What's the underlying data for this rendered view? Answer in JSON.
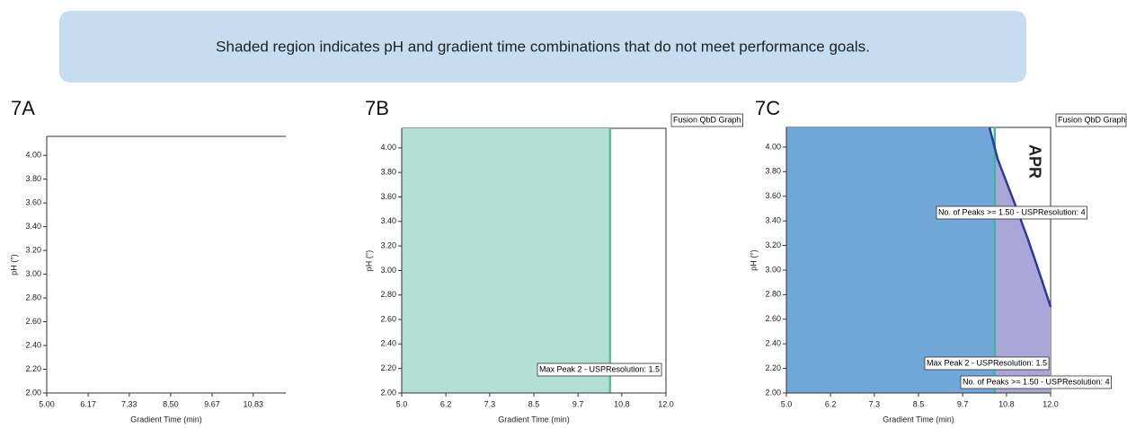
{
  "banner": "Shaded region indicates pH and gradient time combinations that do not meet performance goals.",
  "chart_data": [
    {
      "type": "area",
      "label": "7A",
      "xlabel": "Gradient Time (min)",
      "ylabel": "pH (°)",
      "xlim": [
        5,
        11.75
      ],
      "ylim": [
        2,
        4.16
      ],
      "xticks": [
        {
          "value": 5,
          "label": "5.00"
        },
        6.17,
        7.33,
        {
          "value": 8.5,
          "label": "8.50"
        },
        9.67,
        10.83
      ],
      "yticks": [
        {
          "value": 2,
          "label": "2.00"
        },
        {
          "value": 2.2,
          "label": "2.20"
        },
        {
          "value": 2.4,
          "label": "2.40"
        },
        {
          "value": 2.6,
          "label": "2.60"
        },
        {
          "value": 2.8,
          "label": "2.80"
        },
        {
          "value": 3,
          "label": "3.00"
        },
        {
          "value": 3.2,
          "label": "3.20"
        },
        {
          "value": 3.4,
          "label": "3.40"
        },
        {
          "value": 3.6,
          "label": "3.60"
        },
        {
          "value": 3.8,
          "label": "3.80"
        },
        {
          "value": 4,
          "label": "4.00"
        }
      ],
      "regions": [],
      "lines": [],
      "annotations": []
    },
    {
      "type": "area",
      "label": "7B",
      "xlabel": "Gradient Time (min)",
      "ylabel": "pH (°)",
      "graph_label": "Fusion QbD Graph",
      "xlim": [
        5,
        12
      ],
      "ylim": [
        2,
        4.16
      ],
      "xticks": [
        {
          "value": 5,
          "label": "5.0"
        },
        {
          "value": 6.17,
          "label": "6.2"
        },
        {
          "value": 7.33,
          "label": "7.3"
        },
        8.5,
        {
          "value": 9.67,
          "label": "9.7"
        },
        {
          "value": 10.83,
          "label": "10.8"
        },
        {
          "value": 12,
          "label": "12.0"
        }
      ],
      "yticks": [
        {
          "value": 2,
          "label": "2.00"
        },
        {
          "value": 2.2,
          "label": "2.20"
        },
        {
          "value": 2.4,
          "label": "2.40"
        },
        {
          "value": 2.6,
          "label": "2.60"
        },
        {
          "value": 2.8,
          "label": "2.80"
        },
        {
          "value": 3,
          "label": "3.00"
        },
        {
          "value": 3.2,
          "label": "3.20"
        },
        {
          "value": 3.4,
          "label": "3.40"
        },
        {
          "value": 3.6,
          "label": "3.60"
        },
        {
          "value": 3.8,
          "label": "3.80"
        },
        {
          "value": 4,
          "label": "4.00"
        }
      ],
      "regions": [
        {
          "color": "#b4e0d4",
          "x": [
            5,
            5,
            10.52,
            10.52
          ],
          "values": [
            2,
            4.16,
            4.16,
            2
          ]
        }
      ],
      "lines": [
        {
          "color": "#5cbf9c",
          "x": [
            10.52,
            10.52
          ],
          "values": [
            2,
            4.16
          ]
        }
      ],
      "annotations": [
        "Max Peak 2 - USPResolution: 1.5"
      ]
    },
    {
      "type": "area",
      "label": "7C",
      "xlabel": "Gradient Time (min)",
      "ylabel": "pH (°)",
      "graph_label": "Fusion QbD Graph",
      "region_label": "APR",
      "xlim": [
        5,
        12
      ],
      "ylim": [
        2,
        4.16
      ],
      "xticks": [
        {
          "value": 5,
          "label": "5.0"
        },
        {
          "value": 6.17,
          "label": "6.2"
        },
        {
          "value": 7.33,
          "label": "7.3"
        },
        8.5,
        {
          "value": 9.67,
          "label": "9.7"
        },
        {
          "value": 10.83,
          "label": "10.8"
        },
        {
          "value": 12,
          "label": "12.0"
        }
      ],
      "yticks": [
        {
          "value": 2,
          "label": "2.00"
        },
        {
          "value": 2.2,
          "label": "2.20"
        },
        {
          "value": 2.4,
          "label": "2.40"
        },
        {
          "value": 2.6,
          "label": "2.60"
        },
        {
          "value": 2.8,
          "label": "2.80"
        },
        {
          "value": 3,
          "label": "3.00"
        },
        {
          "value": 3.2,
          "label": "3.20"
        },
        {
          "value": 3.4,
          "label": "3.40"
        },
        {
          "value": 3.6,
          "label": "3.60"
        },
        {
          "value": 3.8,
          "label": "3.80"
        },
        {
          "value": 4,
          "label": "4.00"
        }
      ],
      "regions": [
        {
          "color": "#70a6d8",
          "x": [
            5,
            5,
            10.38,
            10.52,
            10.52
          ],
          "values": [
            2,
            4.16,
            4.16,
            4.0,
            2
          ]
        },
        {
          "color": "#aaa7d8",
          "x": [
            10.52,
            10.52,
            10.6,
            10.85,
            11.1,
            11.4,
            11.7,
            12,
            12
          ],
          "values": [
            2,
            4.0,
            3.9,
            3.7,
            3.5,
            3.25,
            2.98,
            2.7,
            2
          ]
        }
      ],
      "lines": [
        {
          "color": "#3fb5a8",
          "x": [
            10.52,
            10.52
          ],
          "values": [
            2,
            4.16
          ]
        },
        {
          "color": "#2e3a9a",
          "x": [
            10.38,
            10.6,
            10.85,
            11.1,
            11.4,
            11.7,
            12
          ],
          "values": [
            4.16,
            3.9,
            3.7,
            3.5,
            3.25,
            2.98,
            2.7
          ]
        }
      ],
      "annotations": [
        "No. of Peaks >= 1.50 - USPResolution: 4",
        "Max Peak 2 - USPResolution: 1.5",
        "No. of Peaks >= 1.50 - USPResolution: 4"
      ]
    }
  ]
}
